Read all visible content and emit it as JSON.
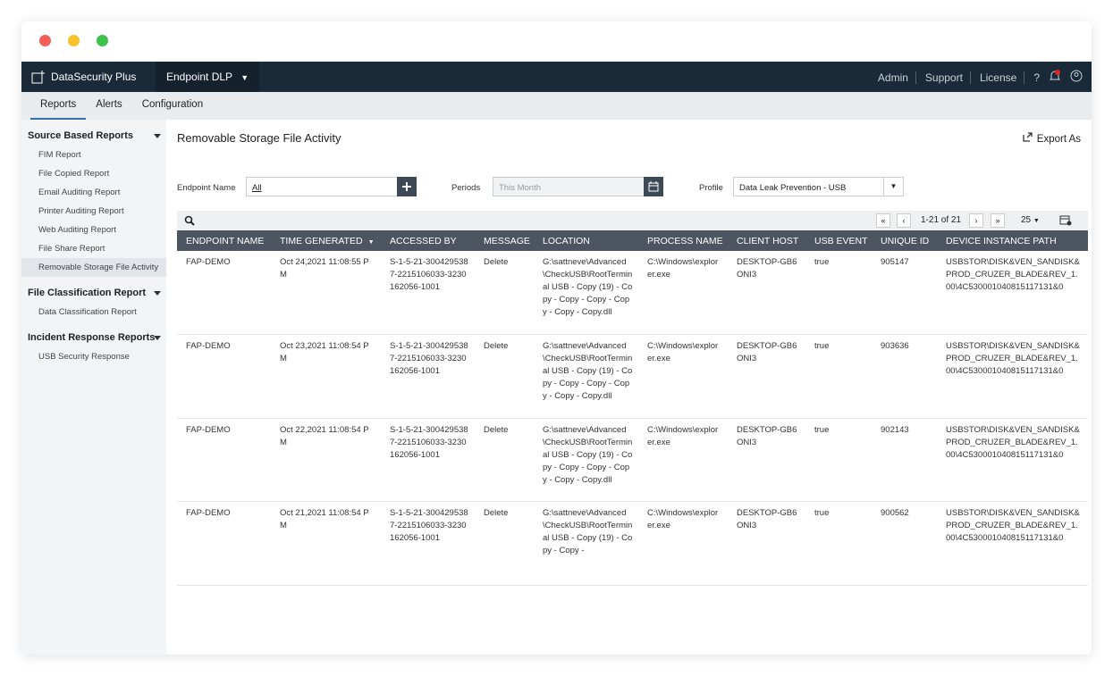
{
  "app": {
    "brand": "DataSecurity Plus",
    "product": "Endpoint DLP",
    "top_links": [
      "Admin",
      "Support",
      "License"
    ],
    "help": "?"
  },
  "tabs": {
    "items": [
      "Reports",
      "Alerts",
      "Configuration"
    ],
    "active": 0
  },
  "sidebar": {
    "active": [
      0,
      6
    ],
    "groups": [
      {
        "title": "Source Based Reports",
        "items": [
          "FIM Report",
          "File Copied Report",
          "Email Auditing Report",
          "Printer Auditing Report",
          "Web Auditing Report",
          "File Share Report",
          "Removable Storage File Activity"
        ]
      },
      {
        "title": "File Classification Report",
        "items": [
          "Data Classification Report"
        ]
      },
      {
        "title": "Incident Response Reports",
        "items": [
          "USB Security Response"
        ]
      }
    ]
  },
  "report": {
    "title": "Removable Storage File Activity",
    "export": "Export As",
    "filters": {
      "endpoint_label": "Endpoint Name",
      "endpoint_value": "All",
      "period_label": "Periods",
      "period_placeholder": "This Month",
      "profile_label": "Profile",
      "profile_value": "Data Leak Prevention - USB"
    },
    "pagination": {
      "range": "1-21 of 21",
      "page_size": "25"
    }
  },
  "table": {
    "sorted_column": 1,
    "columns": [
      "ENDPOINT NAME",
      "TIME GENERATED",
      "ACCESSED BY",
      "MESSAGE",
      "LOCATION",
      "PROCESS NAME",
      "CLIENT HOST",
      "USB EVENT",
      "UNIQUE ID",
      "DEVICE INSTANCE PATH"
    ],
    "rows": [
      [
        "FAP-DEMO",
        "Oct 24,2021 11:08:55 PM",
        "S-1-5-21-3004295387-2215106033-3230162056-1001",
        "Delete",
        "G:\\sattneve\\Advanced\\CheckUSB\\RootTerminal USB - Copy (19) - Copy - Copy - Copy - Copy - Copy - Copy.dll",
        "C:\\Windows\\explorer.exe",
        "DESKTOP-GB6ONI3",
        "true",
        "905147",
        "USBSTOR\\DISK&VEN_SANDISK&PROD_CRUZER_BLADE&REV_1.00\\4C530001040815117131&0"
      ],
      [
        "FAP-DEMO",
        "Oct 23,2021 11:08:54 PM",
        "S-1-5-21-3004295387-2215106033-3230162056-1001",
        "Delete",
        "G:\\sattneve\\Advanced\\CheckUSB\\RootTerminal USB - Copy (19) - Copy - Copy - Copy - Copy - Copy - Copy.dll",
        "C:\\Windows\\explorer.exe",
        "DESKTOP-GB6ONI3",
        "true",
        "903636",
        "USBSTOR\\DISK&VEN_SANDISK&PROD_CRUZER_BLADE&REV_1.00\\4C530001040815117131&0"
      ],
      [
        "FAP-DEMO",
        "Oct 22,2021 11:08:54 PM",
        "S-1-5-21-3004295387-2215106033-3230162056-1001",
        "Delete",
        "G:\\sattneve\\Advanced\\CheckUSB\\RootTerminal USB - Copy (19) - Copy - Copy - Copy - Copy - Copy - Copy.dll",
        "C:\\Windows\\explorer.exe",
        "DESKTOP-GB6ONI3",
        "true",
        "902143",
        "USBSTOR\\DISK&VEN_SANDISK&PROD_CRUZER_BLADE&REV_1.00\\4C530001040815117131&0"
      ],
      [
        "FAP-DEMO",
        "Oct 21,2021 11:08:54 PM",
        "S-1-5-21-3004295387-2215106033-3230162056-1001",
        "Delete",
        "G:\\sattneve\\Advanced\\CheckUSB\\RootTerminal USB - Copy (19) - Copy - Copy -",
        "C:\\Windows\\explorer.exe",
        "DESKTOP-GB6ONI3",
        "true",
        "900562",
        "USBSTOR\\DISK&VEN_SANDISK&PROD_CRUZER_BLADE&REV_1.00\\4C530001040815117131&0"
      ]
    ]
  }
}
